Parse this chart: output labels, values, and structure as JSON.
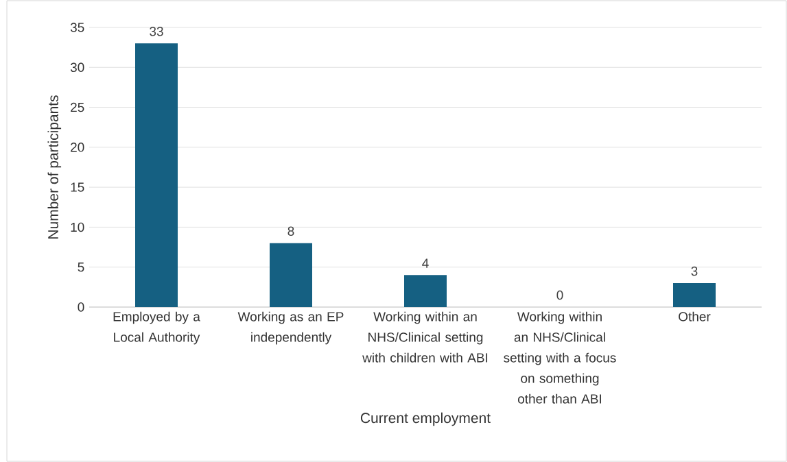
{
  "chart_data": {
    "type": "bar",
    "categories": [
      "Employed by a Local Authority",
      "Working as an EP independently",
      "Working within an NHS/Clinical setting with children with ABI",
      "Working within an NHS/Clinical setting with a focus on something other than ABI",
      "Other"
    ],
    "values": [
      33,
      8,
      4,
      0,
      3
    ],
    "color": "#156082",
    "xlabel": "Current employment",
    "ylabel": "Number of participants",
    "ylim": [
      0,
      35
    ],
    "yticks": [
      0,
      5,
      10,
      15,
      20,
      25,
      30,
      35
    ],
    "grid": "y",
    "data_labels": true
  }
}
